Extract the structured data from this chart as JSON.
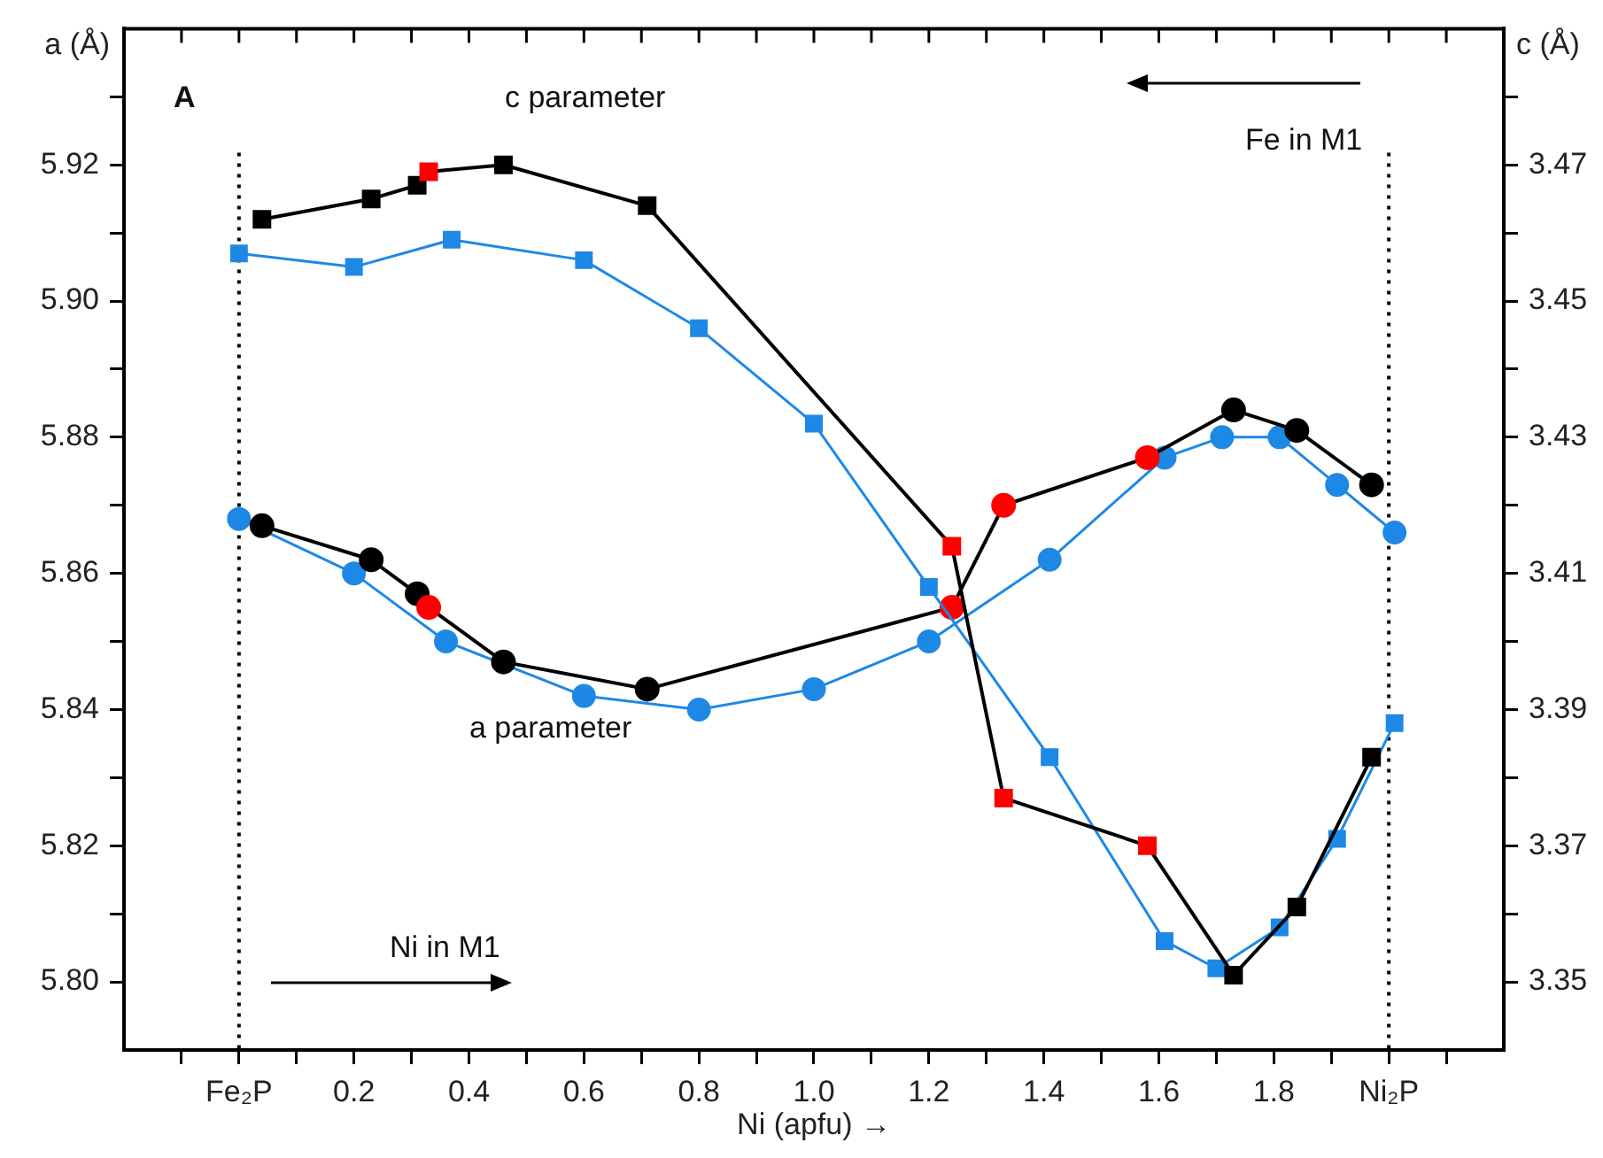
{
  "chart_data": {
    "type": "line",
    "xlabel": "Ni (apfu) →",
    "ylabel": "a (Å)",
    "y2label": "c (Å)",
    "annotations": [
      "A",
      "c parameter",
      "a parameter",
      "Fe in M1",
      "Ni in M1"
    ],
    "xlim": [
      -0.2,
      2.2
    ],
    "xticks": [
      {
        "value": -0.1,
        "label": null
      },
      {
        "value": 0,
        "label": "Fe₂P"
      },
      {
        "value": 0.1,
        "label": null
      },
      0.2,
      {
        "value": 0.3,
        "label": null
      },
      0.4,
      {
        "value": 0.5,
        "label": null
      },
      0.6,
      {
        "value": 0.7,
        "label": null
      },
      0.8,
      {
        "value": 0.9,
        "label": null
      },
      {
        "value": 1.0,
        "label": "1.0"
      },
      {
        "value": 1.1,
        "label": null
      },
      1.2,
      {
        "value": 1.3,
        "label": null
      },
      1.4,
      {
        "value": 1.5,
        "label": null
      },
      1.6,
      {
        "value": 1.7,
        "label": null
      },
      1.8,
      {
        "value": 1.9,
        "label": null
      },
      {
        "value": 2.0,
        "label": "Ni₂P"
      },
      {
        "value": 2.1,
        "label": null
      }
    ],
    "ylim": [
      5.79,
      5.94
    ],
    "yticks": [
      {
        "value": 5.8,
        "label": "5.80"
      },
      {
        "value": 5.81,
        "label": null
      },
      {
        "value": 5.82,
        "label": "5.82"
      },
      {
        "value": 5.83,
        "label": null
      },
      {
        "value": 5.84,
        "label": "5.84"
      },
      {
        "value": 5.85,
        "label": null
      },
      {
        "value": 5.86,
        "label": "5.86"
      },
      {
        "value": 5.87,
        "label": null
      },
      {
        "value": 5.88,
        "label": "5.88"
      },
      {
        "value": 5.89,
        "label": null
      },
      {
        "value": 5.9,
        "label": "5.90"
      },
      {
        "value": 5.91,
        "label": null
      },
      {
        "value": 5.92,
        "label": "5.92"
      },
      {
        "value": 5.93,
        "label": null
      }
    ],
    "y2lim": [
      3.34,
      3.49
    ],
    "y2ticks": [
      3.35,
      {
        "value": 3.36,
        "label": null
      },
      3.37,
      {
        "value": 3.38,
        "label": null
      },
      3.39,
      {
        "value": 3.4,
        "label": null
      },
      3.41,
      {
        "value": 3.42,
        "label": null
      },
      3.43,
      {
        "value": 3.44,
        "label": null
      },
      3.45,
      {
        "value": 3.46,
        "label": null
      },
      3.47,
      {
        "value": 3.48,
        "label": null
      }
    ],
    "grid": false,
    "legend": false,
    "line_style": "solid",
    "ref_lines": [
      {
        "axis": "x",
        "value": 0,
        "color": "#000000",
        "line_style": "dotted"
      },
      {
        "axis": "x",
        "value": 2.0,
        "color": "#000000",
        "line_style": "dotted"
      }
    ],
    "series": [
      {
        "axis": "y2",
        "marker": "square",
        "color": "#000000",
        "colors": [
          "#000000",
          "#000000",
          "#000000",
          "#ff0000",
          "#000000",
          "#000000",
          "#ff0000",
          "#ff0000",
          "#ff0000",
          "#000000",
          "#000000",
          "#000000"
        ],
        "x": [
          0.04,
          0.23,
          0.31,
          0.33,
          0.46,
          0.71,
          1.24,
          1.33,
          1.58,
          1.73,
          1.84,
          1.97
        ],
        "values": [
          3.462,
          3.465,
          3.467,
          3.469,
          3.47,
          3.464,
          3.414,
          3.377,
          3.37,
          3.351,
          3.361,
          3.383
        ]
      },
      {
        "axis": "y2",
        "marker": "square",
        "color": "#1e88e5",
        "x": [
          0,
          0.2,
          0.37,
          0.6,
          0.8,
          1.0,
          1.2,
          1.41,
          1.61,
          1.7,
          1.81,
          1.91,
          2.01
        ],
        "values": [
          3.457,
          3.455,
          3.459,
          3.456,
          3.446,
          3.432,
          3.408,
          3.383,
          3.356,
          3.352,
          3.358,
          3.371,
          3.388
        ]
      },
      {
        "axis": "y",
        "marker": "circle",
        "color": "#000000",
        "colors": [
          "#000000",
          "#000000",
          "#000000",
          "#ff0000",
          "#000000",
          "#000000",
          "#ff0000",
          "#ff0000",
          "#ff0000",
          "#000000",
          "#000000",
          "#000000"
        ],
        "x": [
          0.04,
          0.23,
          0.31,
          0.33,
          0.46,
          0.71,
          1.24,
          1.33,
          1.58,
          1.73,
          1.84,
          1.97
        ],
        "values": [
          5.867,
          5.862,
          5.857,
          5.855,
          5.847,
          5.843,
          5.855,
          5.87,
          5.877,
          5.884,
          5.881,
          5.873
        ]
      },
      {
        "axis": "y",
        "marker": "circle",
        "color": "#1e88e5",
        "x": [
          0,
          0.2,
          0.36,
          0.6,
          0.8,
          1.0,
          1.2,
          1.41,
          1.61,
          1.71,
          1.81,
          1.91,
          2.01
        ],
        "values": [
          5.868,
          5.86,
          5.85,
          5.842,
          5.84,
          5.843,
          5.85,
          5.862,
          5.877,
          5.88,
          5.88,
          5.873,
          5.866
        ]
      }
    ]
  }
}
